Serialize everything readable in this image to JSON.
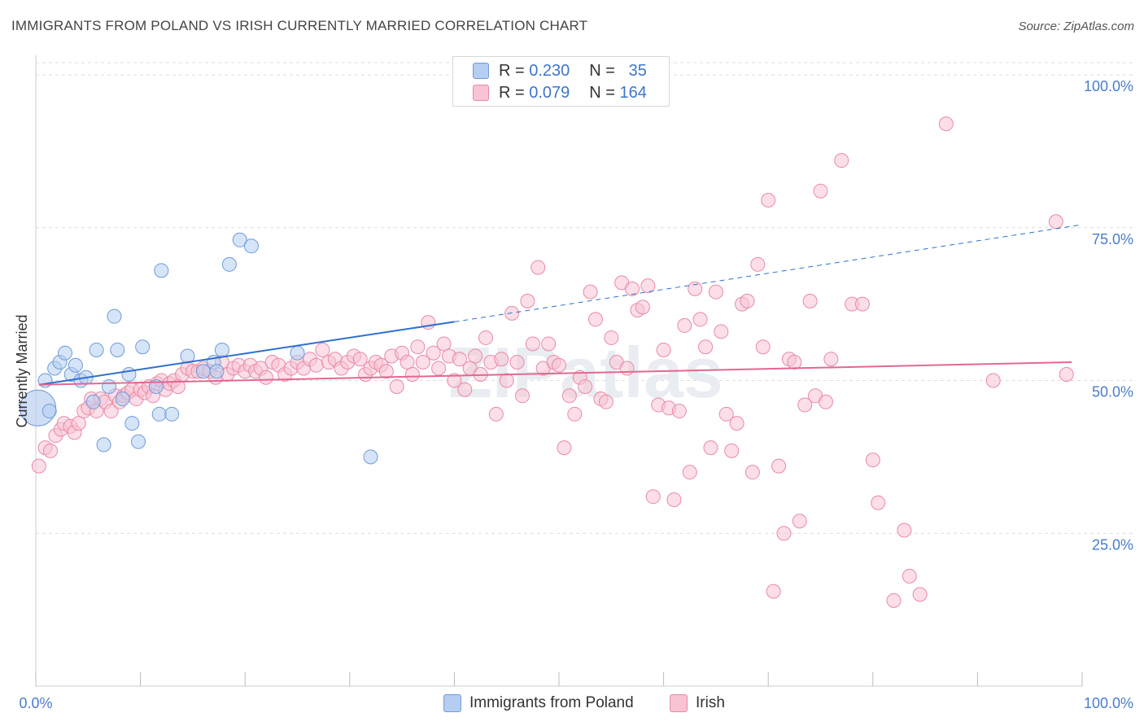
{
  "title": "IMMIGRANTS FROM POLAND VS IRISH CURRENTLY MARRIED CORRELATION CHART",
  "source": "Source: ZipAtlas.com",
  "watermark": "ZIPatlas",
  "legend_stats": [
    {
      "r_label": "R =",
      "r_value": "0.230",
      "n_label": "N =",
      "n_value": "35"
    },
    {
      "r_label": "R =",
      "r_value": "0.079",
      "n_label": "N =",
      "n_value": "164"
    }
  ],
  "colors": {
    "series_0_fill": "#b5cdf0",
    "series_0_stroke": "#6f9bd8",
    "series_0_line": "#2f6fce",
    "series_1_fill": "#f8c3d3",
    "series_1_stroke": "#e98aa7",
    "series_1_line": "#e2688f",
    "tick_text": "#4a7cc9",
    "grid": "#dddddd"
  },
  "chart_data": {
    "type": "scatter",
    "title": "IMMIGRANTS FROM POLAND VS IRISH CURRENTLY MARRIED CORRELATION CHART",
    "xlabel": "",
    "ylabel": "Currently Married",
    "xlim": [
      0,
      100
    ],
    "ylim": [
      0,
      102
    ],
    "x_tick_labels": [
      "0.0%",
      "100.0%"
    ],
    "y_ticks": [
      25,
      50,
      75,
      100
    ],
    "y_tick_labels": [
      "25.0%",
      "50.0%",
      "75.0%",
      "100.0%"
    ],
    "grid": true,
    "legend": "top-center and bottom",
    "series": [
      {
        "name": "Immigrants from Poland",
        "r": 0.23,
        "n": 35,
        "trend": {
          "x0": 0.3,
          "y0": 49.3,
          "x1": 40,
          "y1": 59.6,
          "dash_x1": 100,
          "dash_y1": 75.5
        },
        "points": [
          [
            0.2,
            45.5
          ],
          [
            0.9,
            50.0
          ],
          [
            1.3,
            45.0
          ],
          [
            1.8,
            52.0
          ],
          [
            2.3,
            53.0
          ],
          [
            2.8,
            54.5
          ],
          [
            3.4,
            51.0
          ],
          [
            3.8,
            52.5
          ],
          [
            4.3,
            50.0
          ],
          [
            4.8,
            50.5
          ],
          [
            5.5,
            46.5
          ],
          [
            5.8,
            55.0
          ],
          [
            6.5,
            39.5
          ],
          [
            7.0,
            49.0
          ],
          [
            7.5,
            60.5
          ],
          [
            7.8,
            55.0
          ],
          [
            8.3,
            47.0
          ],
          [
            8.9,
            51.0
          ],
          [
            9.2,
            43.0
          ],
          [
            9.8,
            40.0
          ],
          [
            10.2,
            55.5
          ],
          [
            11.5,
            49.0
          ],
          [
            11.8,
            44.5
          ],
          [
            12.0,
            68.0
          ],
          [
            13.0,
            44.5
          ],
          [
            14.5,
            54.0
          ],
          [
            16.0,
            51.5
          ],
          [
            17.0,
            53.0
          ],
          [
            17.3,
            51.5
          ],
          [
            17.8,
            55.0
          ],
          [
            18.5,
            69.0
          ],
          [
            19.5,
            73.0
          ],
          [
            20.6,
            72.0
          ],
          [
            25.0,
            54.5
          ],
          [
            32.0,
            37.5
          ]
        ]
      },
      {
        "name": "Irish",
        "r": 0.079,
        "n": 164,
        "trend": {
          "x0": 0.3,
          "y0": 49.3,
          "x1": 99,
          "y1": 53.0
        },
        "points": [
          [
            0.3,
            36.0
          ],
          [
            0.9,
            39.0
          ],
          [
            1.4,
            38.5
          ],
          [
            1.9,
            41.0
          ],
          [
            2.4,
            42.0
          ],
          [
            2.7,
            43.0
          ],
          [
            3.3,
            42.5
          ],
          [
            3.7,
            41.5
          ],
          [
            4.1,
            43.0
          ],
          [
            4.6,
            45.0
          ],
          [
            5.0,
            45.5
          ],
          [
            5.3,
            47.0
          ],
          [
            5.8,
            45.0
          ],
          [
            6.2,
            47.0
          ],
          [
            6.6,
            46.5
          ],
          [
            7.2,
            45.0
          ],
          [
            7.6,
            47.5
          ],
          [
            8.0,
            46.5
          ],
          [
            8.4,
            47.5
          ],
          [
            8.8,
            48.0
          ],
          [
            9.2,
            48.5
          ],
          [
            9.6,
            47.0
          ],
          [
            10.0,
            48.5
          ],
          [
            10.4,
            48.0
          ],
          [
            10.8,
            49.0
          ],
          [
            11.2,
            47.5
          ],
          [
            11.6,
            49.5
          ],
          [
            12.0,
            50.0
          ],
          [
            12.4,
            48.5
          ],
          [
            12.8,
            49.5
          ],
          [
            13.2,
            50.0
          ],
          [
            13.6,
            49.0
          ],
          [
            14.0,
            51.0
          ],
          [
            14.5,
            52.0
          ],
          [
            15.0,
            51.5
          ],
          [
            15.5,
            51.5
          ],
          [
            16.0,
            52.0
          ],
          [
            16.6,
            51.5
          ],
          [
            17.2,
            50.5
          ],
          [
            17.8,
            53.0
          ],
          [
            18.3,
            51.0
          ],
          [
            18.9,
            52.0
          ],
          [
            19.4,
            52.5
          ],
          [
            20.0,
            51.5
          ],
          [
            20.5,
            52.5
          ],
          [
            21.0,
            51.5
          ],
          [
            21.5,
            52.0
          ],
          [
            22.0,
            50.5
          ],
          [
            22.6,
            53.0
          ],
          [
            23.2,
            52.5
          ],
          [
            23.8,
            51.0
          ],
          [
            24.4,
            52.0
          ],
          [
            25.0,
            53.0
          ],
          [
            25.6,
            52.0
          ],
          [
            26.2,
            53.5
          ],
          [
            26.8,
            52.5
          ],
          [
            27.4,
            55.0
          ],
          [
            28.0,
            53.0
          ],
          [
            28.6,
            53.5
          ],
          [
            29.2,
            52.0
          ],
          [
            29.8,
            53.0
          ],
          [
            30.4,
            54.0
          ],
          [
            31.0,
            53.5
          ],
          [
            31.5,
            51.0
          ],
          [
            32.0,
            52.0
          ],
          [
            32.5,
            53.0
          ],
          [
            33.0,
            52.5
          ],
          [
            33.5,
            51.5
          ],
          [
            34.0,
            54.0
          ],
          [
            34.5,
            49.0
          ],
          [
            35.0,
            54.5
          ],
          [
            35.5,
            53.0
          ],
          [
            36.0,
            51.0
          ],
          [
            36.5,
            55.5
          ],
          [
            37.0,
            53.0
          ],
          [
            37.5,
            59.5
          ],
          [
            38.0,
            54.5
          ],
          [
            38.5,
            52.0
          ],
          [
            39.0,
            56.0
          ],
          [
            39.5,
            54.0
          ],
          [
            40.0,
            50.0
          ],
          [
            40.5,
            53.5
          ],
          [
            41.0,
            48.5
          ],
          [
            41.5,
            52.0
          ],
          [
            42.0,
            54.0
          ],
          [
            42.5,
            51.0
          ],
          [
            43.0,
            57.0
          ],
          [
            43.5,
            53.0
          ],
          [
            44.0,
            44.5
          ],
          [
            44.5,
            53.5
          ],
          [
            45.0,
            50.0
          ],
          [
            45.5,
            61.0
          ],
          [
            46.0,
            53.0
          ],
          [
            46.5,
            47.5
          ],
          [
            47.0,
            63.0
          ],
          [
            47.5,
            56.0
          ],
          [
            48.0,
            68.5
          ],
          [
            48.5,
            52.0
          ],
          [
            49.0,
            56.0
          ],
          [
            49.5,
            53.0
          ],
          [
            50.0,
            52.5
          ],
          [
            50.5,
            39.0
          ],
          [
            51.0,
            47.5
          ],
          [
            51.5,
            44.5
          ],
          [
            52.0,
            50.5
          ],
          [
            52.5,
            49.0
          ],
          [
            53.0,
            64.5
          ],
          [
            53.5,
            60.0
          ],
          [
            54.0,
            47.0
          ],
          [
            54.5,
            46.5
          ],
          [
            55.0,
            57.0
          ],
          [
            55.5,
            53.0
          ],
          [
            56.0,
            66.0
          ],
          [
            56.5,
            52.0
          ],
          [
            57.0,
            65.0
          ],
          [
            57.5,
            61.5
          ],
          [
            58.0,
            62.0
          ],
          [
            58.5,
            65.5
          ],
          [
            59.0,
            31.0
          ],
          [
            59.5,
            46.0
          ],
          [
            60.0,
            55.0
          ],
          [
            60.5,
            45.5
          ],
          [
            61.0,
            30.5
          ],
          [
            61.5,
            45.0
          ],
          [
            62.0,
            59.0
          ],
          [
            62.5,
            35.0
          ],
          [
            63.0,
            65.0
          ],
          [
            63.5,
            60.0
          ],
          [
            64.0,
            55.5
          ],
          [
            64.5,
            39.0
          ],
          [
            65.0,
            64.5
          ],
          [
            65.5,
            58.0
          ],
          [
            66.0,
            44.5
          ],
          [
            66.5,
            38.5
          ],
          [
            67.0,
            43.0
          ],
          [
            67.5,
            62.5
          ],
          [
            68.0,
            63.0
          ],
          [
            68.5,
            35.0
          ],
          [
            69.0,
            69.0
          ],
          [
            69.5,
            55.5
          ],
          [
            70.0,
            79.5
          ],
          [
            70.5,
            15.5
          ],
          [
            71.0,
            36.0
          ],
          [
            71.5,
            25.0
          ],
          [
            72.0,
            53.5
          ],
          [
            72.5,
            53.0
          ],
          [
            73.0,
            27.0
          ],
          [
            73.5,
            46.0
          ],
          [
            74.0,
            63.0
          ],
          [
            74.5,
            47.5
          ],
          [
            75.0,
            81.0
          ],
          [
            75.5,
            46.5
          ],
          [
            76.0,
            53.5
          ],
          [
            77.0,
            86.0
          ],
          [
            78.0,
            62.5
          ],
          [
            79.0,
            62.5
          ],
          [
            80.0,
            37.0
          ],
          [
            80.5,
            30.0
          ],
          [
            82.0,
            14.0
          ],
          [
            83.0,
            25.5
          ],
          [
            83.5,
            18.0
          ],
          [
            84.5,
            15.0
          ],
          [
            87.0,
            92.0
          ],
          [
            91.5,
            50.0
          ],
          [
            97.5,
            76.0
          ],
          [
            98.5,
            51.0
          ]
        ]
      }
    ]
  }
}
